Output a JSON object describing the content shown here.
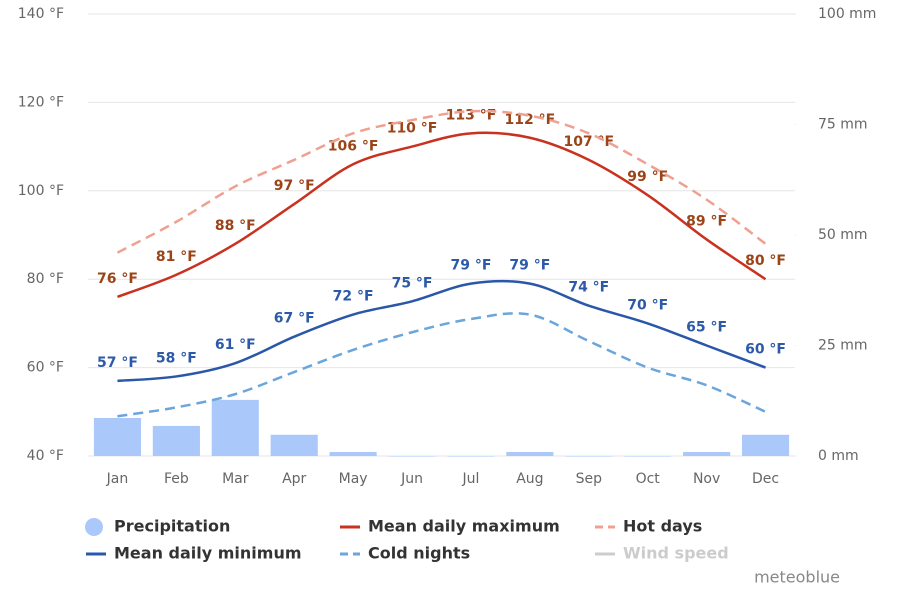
{
  "chart_data": {
    "type": "line",
    "categories": [
      "Jan",
      "Feb",
      "Mar",
      "Apr",
      "May",
      "Jun",
      "Jul",
      "Aug",
      "Sep",
      "Oct",
      "Nov",
      "Dec"
    ],
    "ylim": [
      40,
      140
    ],
    "yticks": [
      {
        "value": 40,
        "label": "40 °F"
      },
      {
        "value": 60,
        "label": "60 °F"
      },
      {
        "value": 80,
        "label": "80 °F"
      },
      {
        "value": 100,
        "label": "100 °F"
      },
      {
        "value": 120,
        "label": "120 °F"
      },
      {
        "value": 140,
        "label": "140 °F"
      }
    ],
    "y2lim": [
      0,
      100
    ],
    "y2ticks": [
      {
        "value": 0,
        "label": "0 mm"
      },
      {
        "value": 25,
        "label": "25 mm"
      },
      {
        "value": 50,
        "label": "50 mm"
      },
      {
        "value": 75,
        "label": "75 mm"
      },
      {
        "value": 100,
        "label": "100 mm"
      }
    ],
    "grid": true,
    "series": [
      {
        "name": "Precipitation",
        "type": "bar",
        "axis": "y2",
        "color": "#aac8fa",
        "values": [
          8.6,
          6.8,
          12.7,
          4.8,
          0.9,
          0,
          0,
          0.9,
          0,
          0,
          0.9,
          4.8
        ]
      },
      {
        "name": "Mean daily maximum",
        "type": "line",
        "color": "#c8321e",
        "label_color": "#9a4418",
        "values": [
          76,
          81,
          88,
          97,
          106,
          110,
          113,
          112,
          107,
          99,
          89,
          80
        ],
        "value_labels": [
          "76 °F",
          "81 °F",
          "88 °F",
          "97 °F",
          "106 °F",
          "110 °F",
          "113 °F",
          "112 °F",
          "107 °F",
          "99 °F",
          "89 °F",
          "80 °F"
        ]
      },
      {
        "name": "Hot days",
        "type": "line",
        "dashed": true,
        "color": "#f0a090",
        "values": [
          86,
          93,
          101,
          107,
          113,
          116,
          118,
          117,
          113,
          106,
          98,
          88
        ]
      },
      {
        "name": "Mean daily minimum",
        "type": "line",
        "color": "#2a57a8",
        "label_color": "#2d5aa8",
        "values": [
          57,
          58,
          61,
          67,
          72,
          75,
          79,
          79,
          74,
          70,
          65,
          60
        ],
        "value_labels": [
          "57 °F",
          "58 °F",
          "61 °F",
          "67 °F",
          "72 °F",
          "75 °F",
          "79 °F",
          "79 °F",
          "74 °F",
          "70 °F",
          "65 °F",
          "60 °F"
        ]
      },
      {
        "name": "Cold nights",
        "type": "line",
        "dashed": true,
        "color": "#6aa6dc",
        "values": [
          49,
          51,
          54,
          59,
          64,
          68,
          71,
          72,
          66,
          60,
          56,
          50
        ]
      },
      {
        "name": "Wind speed",
        "type": "line",
        "hidden": true,
        "color": "#cccccc"
      }
    ],
    "credit": "meteoblue"
  }
}
